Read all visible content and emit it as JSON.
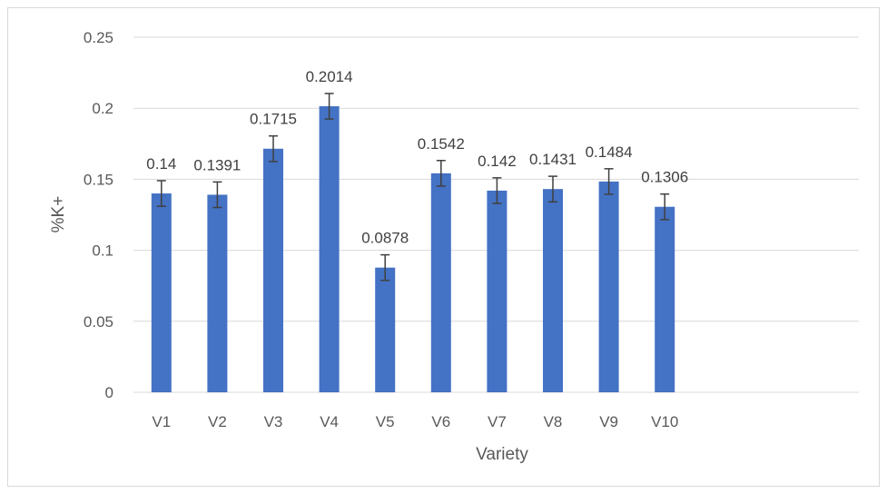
{
  "chart_data": {
    "type": "bar",
    "title": "",
    "xlabel": "Variety",
    "ylabel": "%K+",
    "categories": [
      "V1",
      "V2",
      "V3",
      "V4",
      "V5",
      "V6",
      "V7",
      "V8",
      "V9",
      "V10"
    ],
    "values": [
      0.14,
      0.1391,
      0.1715,
      0.2014,
      0.0878,
      0.1542,
      0.142,
      0.1431,
      0.1484,
      0.1306
    ],
    "data_labels": [
      "0.14",
      "0.1391",
      "0.1715",
      "0.2014",
      "0.0878",
      "0.1542",
      "0.142",
      "0.1431",
      "0.1484",
      "0.1306"
    ],
    "error": 0.009,
    "ylim": [
      0,
      0.25
    ],
    "yticks": [
      0,
      0.05,
      0.1,
      0.15,
      0.2,
      0.25
    ],
    "ytick_labels": [
      "0",
      "0.05",
      "0.1",
      "0.15",
      "0.2",
      "0.25"
    ],
    "grid": true,
    "legend": "none",
    "bar_color": "#4472c4",
    "error_color": "#404040",
    "grid_color": "#d9d9d9"
  }
}
